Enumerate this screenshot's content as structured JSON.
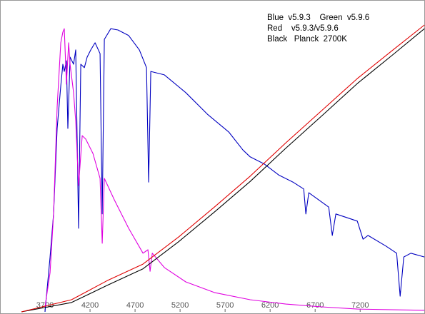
{
  "chart_data": {
    "type": "line",
    "annotations": [
      "Blue  v5.9.3    Green  v5.9.6",
      "Red    v5.9.3/v5.9.6",
      "Black   Planck  2700K"
    ],
    "xlim": [
      3200,
      7920
    ],
    "xticks": [
      3700,
      4200,
      4700,
      5200,
      5700,
      6200,
      6700,
      7200
    ],
    "ylim": [
      0,
      100
    ],
    "series": [
      {
        "name": "Blue",
        "color": "#0000c0",
        "x": [
          3700,
          3756,
          3795,
          3835,
          3875,
          3898,
          3914,
          3938,
          3954,
          3978,
          4017,
          4041,
          4073,
          4097,
          4137,
          4168,
          4208,
          4256,
          4311,
          4335,
          4359,
          4430,
          4510,
          4629,
          4748,
          4827,
          4851,
          4875,
          5025,
          5263,
          5502,
          5740,
          5898,
          5978,
          6137,
          6295,
          6454,
          6573,
          6597,
          6629,
          6851,
          6890,
          6930,
          7168,
          7232,
          7287,
          7486,
          7605,
          7644,
          7684,
          7763,
          7914
        ],
        "values": [
          0,
          17.6,
          31.4,
          58.8,
          72.5,
          79.4,
          77.1,
          80.5,
          58.8,
          81.7,
          79.4,
          84.0,
          26.8,
          79.4,
          78.3,
          81.7,
          84.0,
          86.3,
          82.8,
          31.4,
          87.4,
          90.8,
          90.4,
          88.6,
          84.0,
          78.3,
          41.6,
          77.1,
          76.0,
          70.3,
          63.4,
          57.7,
          51.9,
          49.7,
          47.4,
          43.9,
          41.6,
          39.4,
          31.4,
          38.2,
          33.6,
          24.5,
          31.4,
          29.1,
          23.3,
          24.5,
          21.1,
          18.8,
          5.0,
          17.6,
          18.8,
          17.6
        ]
      },
      {
        "name": "Magenta",
        "color": "#e000e0",
        "x": [
          3700,
          3756,
          3795,
          3835,
          3875,
          3898,
          3914,
          3938,
          3962,
          3978,
          4017,
          4041,
          4073,
          4113,
          4152,
          4232,
          4311,
          4335,
          4359,
          4470,
          4629,
          4788,
          4843,
          4867,
          4891,
          5025,
          5263,
          5581,
          5978,
          6375,
          6771,
          7168,
          7914
        ],
        "values": [
          1.6,
          12.6,
          31.4,
          65.7,
          86.3,
          89.7,
          90.8,
          73.0,
          86.3,
          79.4,
          70.3,
          61.1,
          40.5,
          56.5,
          55.4,
          50.8,
          42.8,
          22.0,
          42.8,
          35.9,
          26.8,
          18.8,
          19.9,
          13.0,
          18.8,
          14.2,
          9.6,
          6.2,
          3.9,
          2.5,
          1.6,
          0.9,
          0.5
        ]
      },
      {
        "name": "Black",
        "color": "#000000",
        "x": [
          3438,
          3994,
          4390,
          4787,
          5184,
          5581,
          5978,
          6375,
          6771,
          7168,
          7565,
          7914
        ],
        "values": [
          0,
          3.0,
          8.5,
          13.8,
          22.5,
          32,
          41.8,
          52.5,
          62.8,
          73.2,
          82.5,
          90.8
        ]
      },
      {
        "name": "Red",
        "color": "#e00000",
        "x": [
          3438,
          3994,
          4390,
          4787,
          5184,
          5581,
          5978,
          6375,
          6771,
          7168,
          7565,
          7914
        ],
        "values": [
          0,
          3.9,
          10,
          15.3,
          24,
          33.6,
          43.5,
          54.2,
          64.5,
          74.8,
          84.0,
          92.0
        ]
      }
    ]
  }
}
